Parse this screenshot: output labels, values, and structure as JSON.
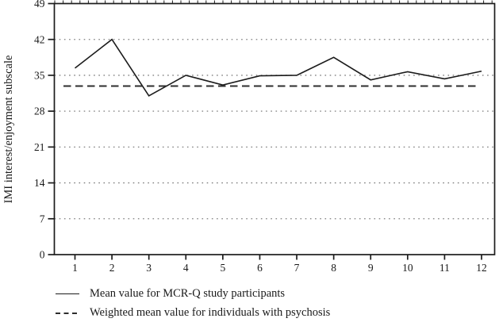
{
  "chart_data": {
    "type": "line",
    "title": "",
    "xlabel": "",
    "ylabel": "IMI interest/enjoyment subscale",
    "x": [
      1,
      2,
      3,
      4,
      5,
      6,
      7,
      8,
      9,
      10,
      11,
      12
    ],
    "yticks": [
      0,
      7,
      14,
      21,
      28,
      35,
      42,
      49
    ],
    "ylim": [
      0,
      49
    ],
    "xlim": [
      0.45,
      12.35
    ],
    "grid": "horizontal-dotted",
    "legend_position": "below-left",
    "series": [
      {
        "name": "Mean value for MCR-Q study participants",
        "style": "solid",
        "color": "#1c1c1c",
        "values": [
          36.4,
          42,
          31,
          35,
          33.1,
          34.9,
          35,
          38.5,
          34.1,
          35.7,
          34.3,
          35.8
        ]
      },
      {
        "name": "Weighted mean value for individuals with psychosis",
        "style": "dashed",
        "color": "#2e2e2e",
        "constant_value": 32.9
      }
    ]
  },
  "colors": {
    "frame": "#1c1c1c",
    "grid": "#7d7d7d",
    "text": "#1a1a1a",
    "background": "#ffffff"
  },
  "fonts": {
    "tick_size": 13.5,
    "ylabel_size": 14.5
  }
}
